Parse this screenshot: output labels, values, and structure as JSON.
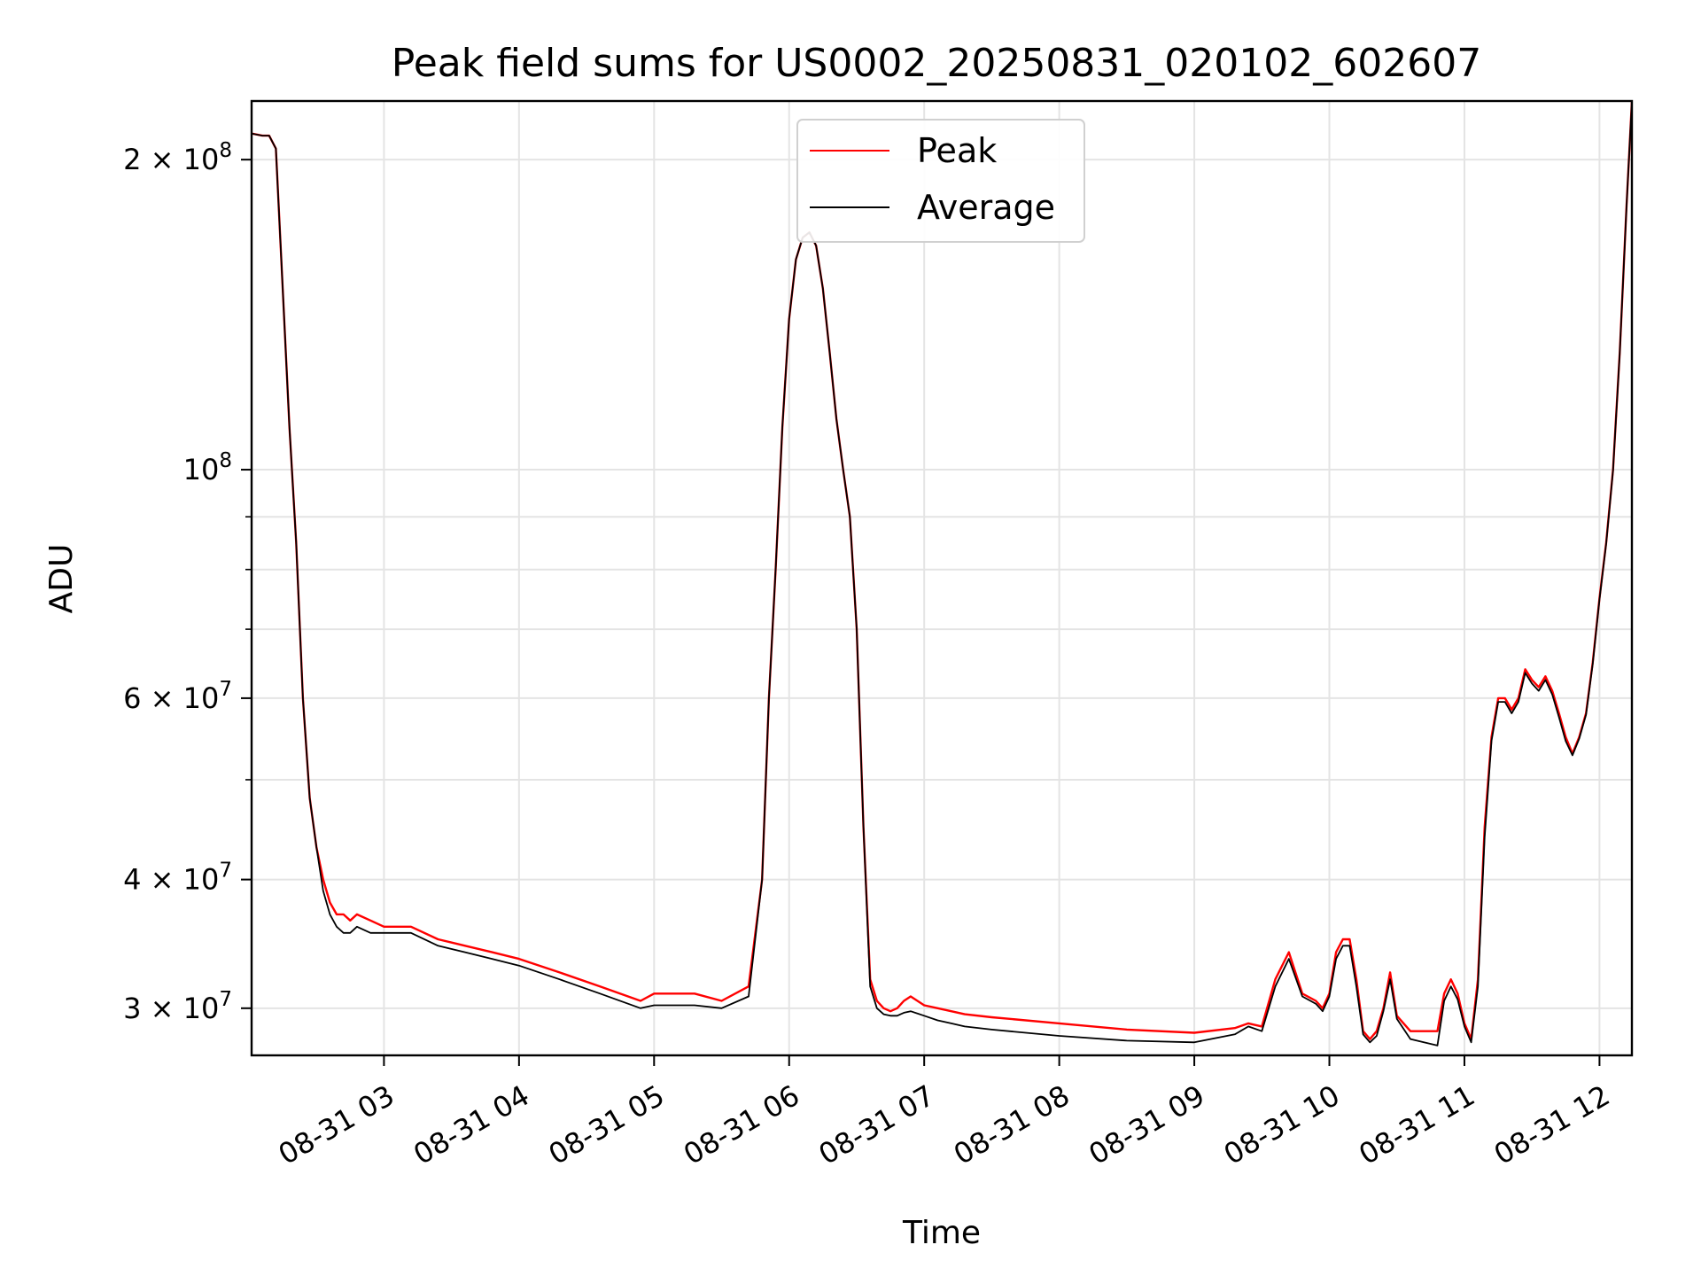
{
  "chart_data": {
    "type": "line",
    "title": "Peak field sums for US0002_20250831_020102_602607",
    "xlabel": "Time",
    "ylabel": "ADU",
    "yscale": "log",
    "grid": true,
    "legend_placement": "top-center",
    "x_ticks": [
      "08-31 03",
      "08-31 04",
      "08-31 05",
      "08-31 06",
      "08-31 07",
      "08-31 08",
      "08-31 09",
      "08-31 10",
      "08-31 11",
      "08-31 12"
    ],
    "x_tick_hours": [
      3,
      4,
      5,
      6,
      7,
      8,
      9,
      10,
      11,
      12
    ],
    "x_range_hours": [
      2.02,
      12.24
    ],
    "y_major_ticks": [
      {
        "value": 30000000,
        "mantissa": "3",
        "exp": "7"
      },
      {
        "value": 40000000,
        "mantissa": "4",
        "exp": "7"
      },
      {
        "value": 60000000,
        "mantissa": "6",
        "exp": "7"
      },
      {
        "value": 100000000,
        "mantissa": "",
        "exp": "8"
      },
      {
        "value": 200000000,
        "mantissa": "2",
        "exp": "8"
      }
    ],
    "y_minor_ticks": [
      50000000,
      70000000,
      80000000,
      90000000
    ],
    "ylim": [
      27000000,
      228000000
    ],
    "series": [
      {
        "name": "Peak",
        "color": "#ff0000",
        "x_hours": [
          2.02,
          2.1,
          2.15,
          2.2,
          2.25,
          2.3,
          2.35,
          2.4,
          2.45,
          2.5,
          2.55,
          2.6,
          2.65,
          2.7,
          2.75,
          2.8,
          2.9,
          3.0,
          3.2,
          3.4,
          3.6,
          3.8,
          4.0,
          4.3,
          4.6,
          4.9,
          5.0,
          5.1,
          5.2,
          5.3,
          5.5,
          5.7,
          5.8,
          5.85,
          5.9,
          5.95,
          6.0,
          6.05,
          6.1,
          6.15,
          6.2,
          6.25,
          6.3,
          6.35,
          6.4,
          6.45,
          6.5,
          6.55,
          6.6,
          6.65,
          6.7,
          6.75,
          6.8,
          6.85,
          6.9,
          7.0,
          7.1,
          7.2,
          7.3,
          7.5,
          8.0,
          8.5,
          9.0,
          9.3,
          9.4,
          9.5,
          9.6,
          9.7,
          9.8,
          9.9,
          9.95,
          10.0,
          10.05,
          10.1,
          10.15,
          10.2,
          10.25,
          10.3,
          10.35,
          10.4,
          10.45,
          10.5,
          10.6,
          10.7,
          10.8,
          10.85,
          10.9,
          10.95,
          11.0,
          11.05,
          11.1,
          11.15,
          11.2,
          11.25,
          11.3,
          11.35,
          11.4,
          11.45,
          11.5,
          11.55,
          11.6,
          11.65,
          11.7,
          11.75,
          11.8,
          11.85,
          11.9,
          11.95,
          12.0,
          12.05,
          12.1,
          12.15,
          12.2,
          12.24
        ],
        "y": [
          212000000,
          211000000,
          211000000,
          205000000,
          150000000,
          110000000,
          85000000,
          60000000,
          48000000,
          43000000,
          40000000,
          38000000,
          37000000,
          37000000,
          36500000,
          37000000,
          36500000,
          36000000,
          36000000,
          35000000,
          34500000,
          34000000,
          33500000,
          32500000,
          31500000,
          30500000,
          31000000,
          31000000,
          31000000,
          31000000,
          30500000,
          31500000,
          40000000,
          60000000,
          80000000,
          110000000,
          140000000,
          160000000,
          168000000,
          170000000,
          165000000,
          150000000,
          130000000,
          112000000,
          100000000,
          90000000,
          70000000,
          45000000,
          32000000,
          30500000,
          30000000,
          29800000,
          30000000,
          30500000,
          30800000,
          30200000,
          30000000,
          29800000,
          29600000,
          29400000,
          29000000,
          28600000,
          28400000,
          28700000,
          29000000,
          28800000,
          32000000,
          34000000,
          31000000,
          30500000,
          30000000,
          31000000,
          34000000,
          35000000,
          35000000,
          32000000,
          28500000,
          28000000,
          28500000,
          30000000,
          32500000,
          29500000,
          28500000,
          28500000,
          28500000,
          31000000,
          32000000,
          31000000,
          29000000,
          28000000,
          32000000,
          45000000,
          55000000,
          60000000,
          60000000,
          58500000,
          60000000,
          64000000,
          62500000,
          61500000,
          63000000,
          61000000,
          58000000,
          55000000,
          53000000,
          55000000,
          58000000,
          65000000,
          75000000,
          85000000,
          100000000,
          130000000,
          180000000,
          228000000
        ]
      },
      {
        "name": "Average",
        "color": "#000000",
        "x_hours": [
          2.02,
          2.1,
          2.15,
          2.2,
          2.25,
          2.3,
          2.35,
          2.4,
          2.45,
          2.5,
          2.55,
          2.6,
          2.65,
          2.7,
          2.75,
          2.8,
          2.9,
          3.0,
          3.2,
          3.4,
          3.6,
          3.8,
          4.0,
          4.3,
          4.6,
          4.9,
          5.0,
          5.1,
          5.2,
          5.3,
          5.5,
          5.7,
          5.8,
          5.85,
          5.9,
          5.95,
          6.0,
          6.05,
          6.1,
          6.15,
          6.2,
          6.25,
          6.3,
          6.35,
          6.4,
          6.45,
          6.5,
          6.55,
          6.6,
          6.65,
          6.7,
          6.75,
          6.8,
          6.85,
          6.9,
          7.0,
          7.1,
          7.2,
          7.3,
          7.5,
          8.0,
          8.5,
          9.0,
          9.3,
          9.4,
          9.5,
          9.6,
          9.7,
          9.8,
          9.9,
          9.95,
          10.0,
          10.05,
          10.1,
          10.15,
          10.2,
          10.25,
          10.3,
          10.35,
          10.4,
          10.45,
          10.5,
          10.6,
          10.7,
          10.8,
          10.85,
          10.9,
          10.95,
          11.0,
          11.05,
          11.1,
          11.15,
          11.2,
          11.25,
          11.3,
          11.35,
          11.4,
          11.45,
          11.5,
          11.55,
          11.6,
          11.65,
          11.7,
          11.75,
          11.8,
          11.85,
          11.9,
          11.95,
          12.0,
          12.05,
          12.1,
          12.15,
          12.2,
          12.24
        ],
        "y": [
          212000000,
          211000000,
          211000000,
          205000000,
          150000000,
          110000000,
          85000000,
          60000000,
          48000000,
          43000000,
          39000000,
          37000000,
          36000000,
          35500000,
          35500000,
          36000000,
          35500000,
          35500000,
          35500000,
          34500000,
          34000000,
          33500000,
          33000000,
          32000000,
          31000000,
          30000000,
          30200000,
          30200000,
          30200000,
          30200000,
          30000000,
          30800000,
          40000000,
          60000000,
          80000000,
          110000000,
          140000000,
          160000000,
          168000000,
          170000000,
          165000000,
          150000000,
          130000000,
          112000000,
          100000000,
          90000000,
          70000000,
          45000000,
          31500000,
          30000000,
          29600000,
          29500000,
          29500000,
          29700000,
          29800000,
          29500000,
          29200000,
          29000000,
          28800000,
          28600000,
          28200000,
          27900000,
          27800000,
          28300000,
          28800000,
          28500000,
          31500000,
          33500000,
          30800000,
          30300000,
          29800000,
          30800000,
          33500000,
          34500000,
          34500000,
          31500000,
          28300000,
          27800000,
          28200000,
          29800000,
          32000000,
          29300000,
          28000000,
          27800000,
          27600000,
          30500000,
          31500000,
          30600000,
          28800000,
          27800000,
          31500000,
          44000000,
          54500000,
          59500000,
          59500000,
          58000000,
          59500000,
          63500000,
          62000000,
          61000000,
          62500000,
          60500000,
          57500000,
          54500000,
          52800000,
          54800000,
          57800000,
          64800000,
          74800000,
          84800000,
          99800000,
          129800000,
          179800000,
          228000000
        ]
      }
    ]
  }
}
